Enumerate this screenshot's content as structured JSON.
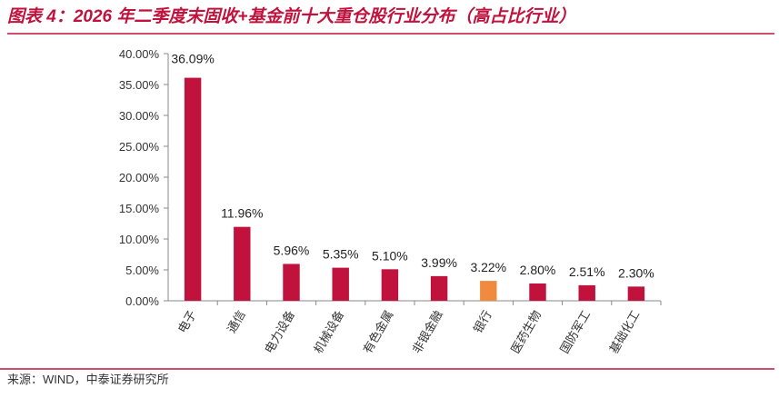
{
  "chart_data": {
    "type": "bar",
    "title": "图表 4：2026 年二季度末固收+基金前十大重仓股行业分布（高占比行业）",
    "source": "来源：WIND，中泰证券研究所",
    "categories": [
      "电子",
      "通信",
      "电力设备",
      "机械设备",
      "有色金属",
      "非银金融",
      "银行",
      "医药生物",
      "国防军工",
      "基础化工"
    ],
    "values": [
      36.09,
      11.96,
      5.96,
      5.35,
      5.1,
      3.99,
      3.22,
      2.8,
      2.51,
      2.3
    ],
    "value_labels": [
      "36.09%",
      "11.96%",
      "5.96%",
      "5.35%",
      "5.10%",
      "3.99%",
      "3.22%",
      "2.80%",
      "2.51%",
      "2.30%"
    ],
    "colors": [
      "#c0123c",
      "#c0123c",
      "#c0123c",
      "#c0123c",
      "#c0123c",
      "#c0123c",
      "#f08a3c",
      "#c0123c",
      "#c0123c",
      "#c0123c"
    ],
    "ylim": [
      0,
      40
    ],
    "yticks": [
      {
        "value": 0,
        "label": "0.00%"
      },
      {
        "value": 5,
        "label": "5.00%"
      },
      {
        "value": 10,
        "label": "10.00%"
      },
      {
        "value": 15,
        "label": "15.00%"
      },
      {
        "value": 20,
        "label": "20.00%"
      },
      {
        "value": 25,
        "label": "25.00%"
      },
      {
        "value": 30,
        "label": "30.00%"
      },
      {
        "value": 35,
        "label": "35.00%"
      },
      {
        "value": 40,
        "label": "40.00%"
      }
    ],
    "grid": false
  }
}
